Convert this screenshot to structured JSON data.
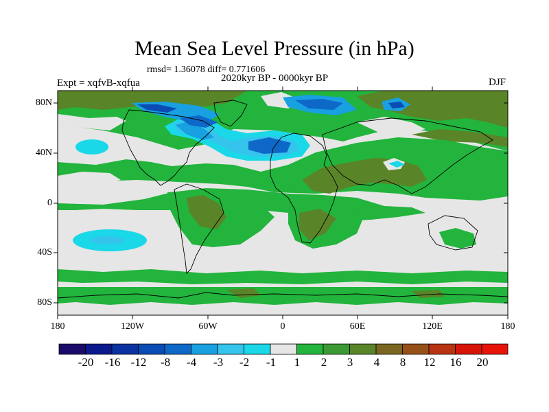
{
  "title": "Mean Sea Level Pressure (in hPa)",
  "stats": "rmsd= 1.36078 diff= 0.771606",
  "period": "2020kyr BP - 0000kyr BP",
  "experiment": "Expt = xqfvB-xqfua",
  "season": "DJF",
  "lat_labels": [
    "80N",
    "40N",
    "0",
    "40S",
    "80S"
  ],
  "lon_labels": [
    "180",
    "120W",
    "60W",
    "0",
    "60E",
    "120E",
    "180"
  ],
  "colorbar": {
    "labels": [
      "-20",
      "-16",
      "-12",
      "-8",
      "-4",
      "-3",
      "-2",
      "-1",
      "1",
      "2",
      "3",
      "4",
      "8",
      "12",
      "16",
      "20"
    ],
    "colors": [
      "#1a0a6a",
      "#0a1a8c",
      "#0a32a0",
      "#0b4cb4",
      "#0d68c8",
      "#18a0e0",
      "#34c4ec",
      "#1ad8e8",
      "#e6e6e6",
      "#22b43c",
      "#3c9a34",
      "#5a8428",
      "#7a6620",
      "#965018",
      "#b83412",
      "#d81408",
      "#e8140a"
    ]
  },
  "map": {
    "ocean_color": "#e6e6e6"
  }
}
